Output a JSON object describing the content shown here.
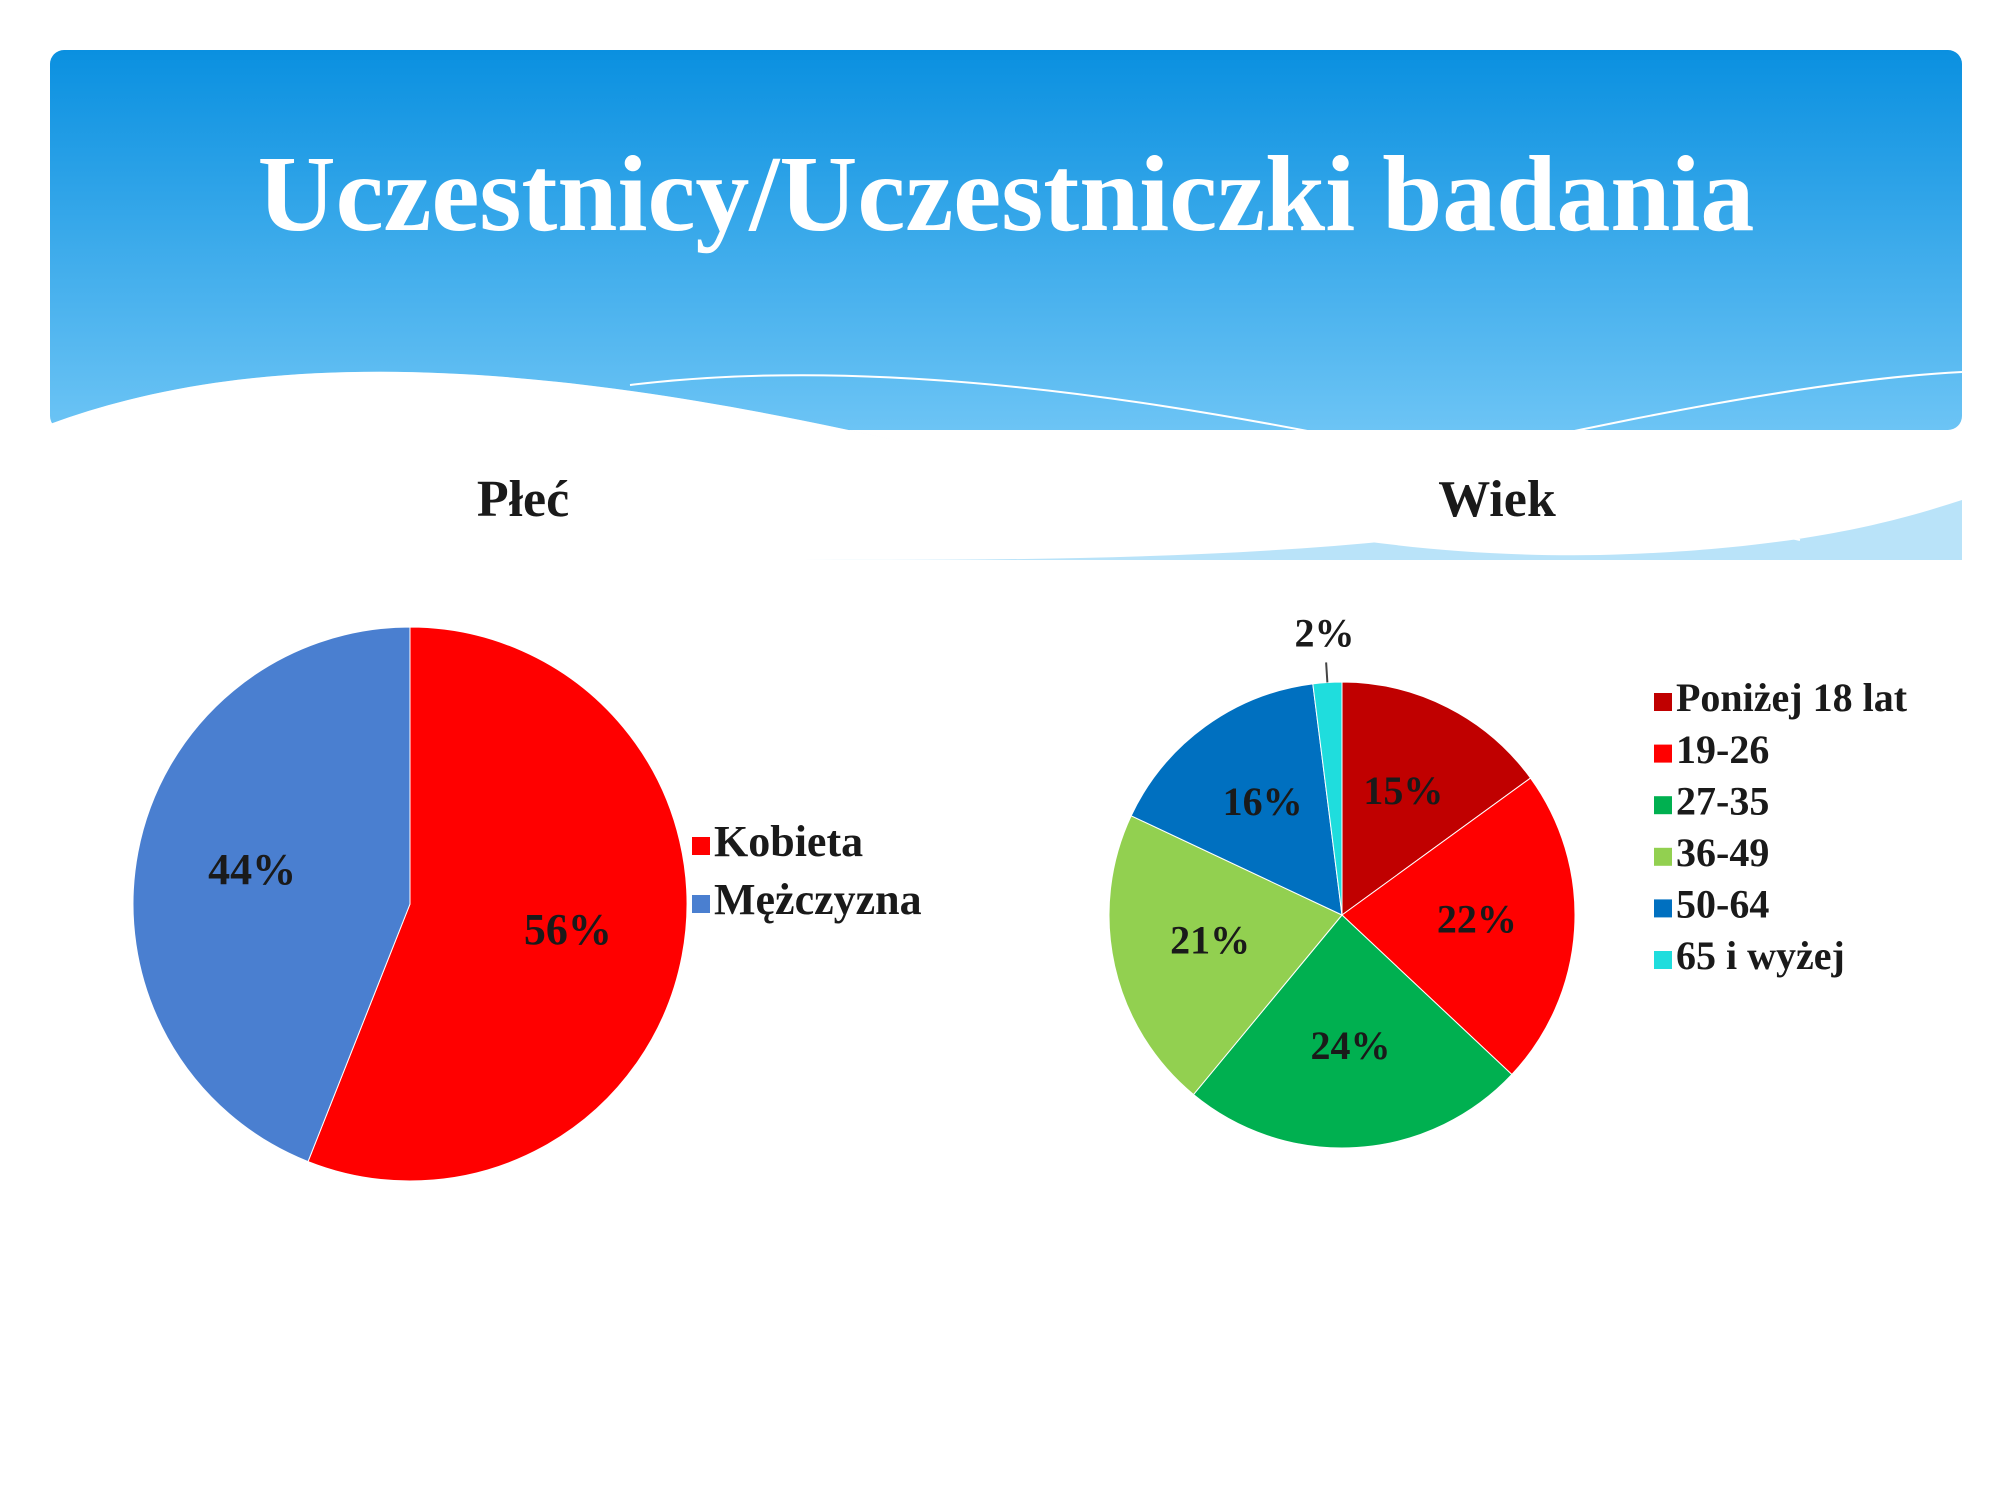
{
  "title": "Uczestnicy/Uczestniczki badania",
  "chart_data": [
    {
      "type": "pie",
      "title": "Płeć",
      "categories": [
        "Kobieta",
        "Mężczyzna"
      ],
      "values": [
        56,
        44
      ],
      "value_labels": [
        "56%",
        "44%"
      ],
      "colors": [
        "#ff0000",
        "#4a7fd0"
      ],
      "legend": "right"
    },
    {
      "type": "pie",
      "title": "Wiek",
      "categories": [
        "Poniżej 18 lat",
        "19-26",
        "27-35",
        "36-49",
        "50-64",
        "65 i wyżej"
      ],
      "values": [
        15,
        22,
        24,
        21,
        16,
        2
      ],
      "value_labels": [
        "15%",
        "22%",
        "24%",
        "21%",
        "16%",
        "2%"
      ],
      "colors": [
        "#c00000",
        "#ff0000",
        "#00b050",
        "#92d050",
        "#0070c0",
        "#1fdddd"
      ],
      "legend": "right"
    }
  ]
}
